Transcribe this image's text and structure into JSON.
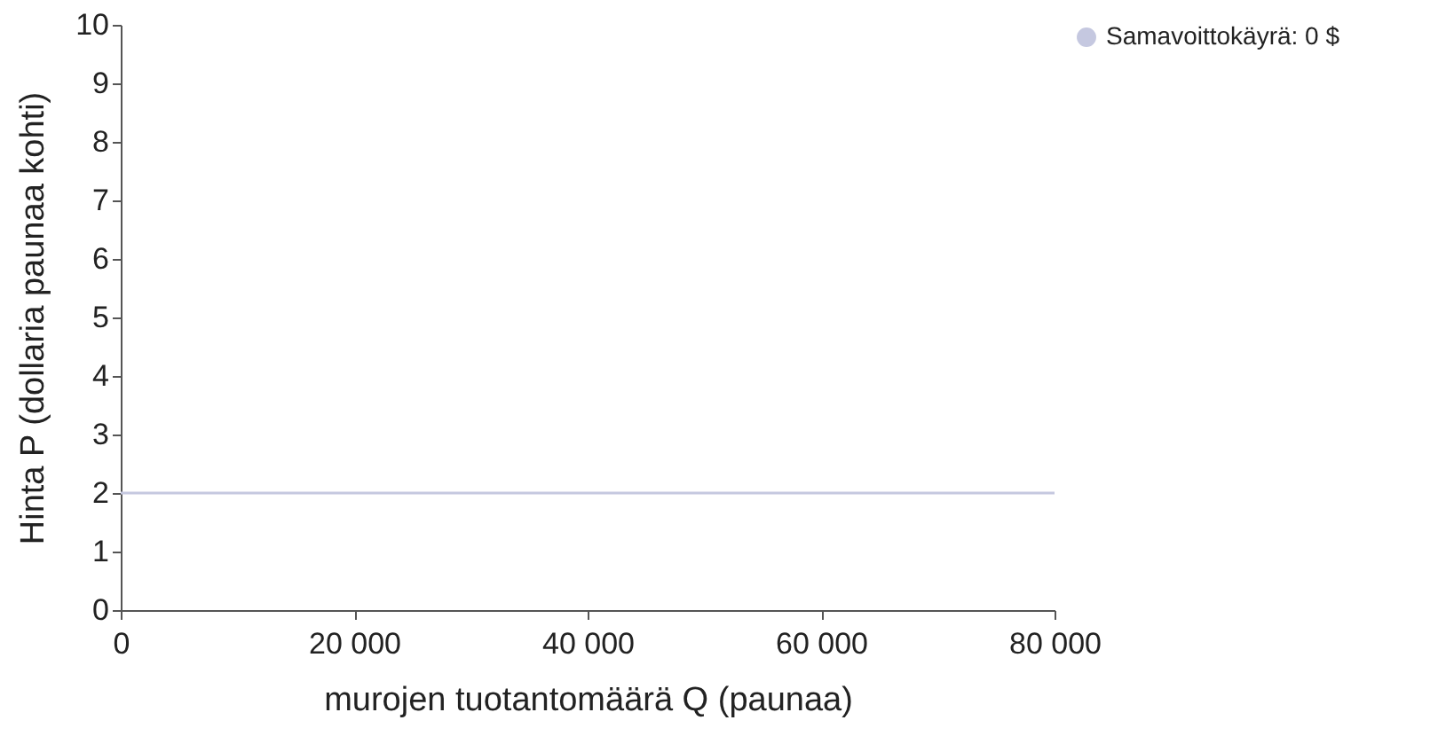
{
  "chart_data": {
    "type": "line",
    "xlabel": "murojen tuotantomäärä Q (paunaa)",
    "ylabel": "Hinta P (dollaria paunaa kohti)",
    "x": [
      0,
      80000
    ],
    "series": [
      {
        "name": "Samavoittokäyrä: 0 $",
        "color": "#c5c8e0",
        "values": [
          2,
          2
        ]
      }
    ],
    "xlim": [
      0,
      80000
    ],
    "xticks": [
      0,
      {
        "value": 20000,
        "label": "20 000"
      },
      {
        "value": 40000,
        "label": "40 000"
      },
      {
        "value": 60000,
        "label": "60 000"
      },
      {
        "value": 80000,
        "label": "80 000"
      }
    ],
    "ylim": [
      0,
      10
    ],
    "yticks": [
      0,
      1,
      2,
      3,
      4,
      5,
      6,
      7,
      8,
      9,
      10
    ],
    "legend": "right",
    "marker": "none",
    "line_style": "solid"
  }
}
